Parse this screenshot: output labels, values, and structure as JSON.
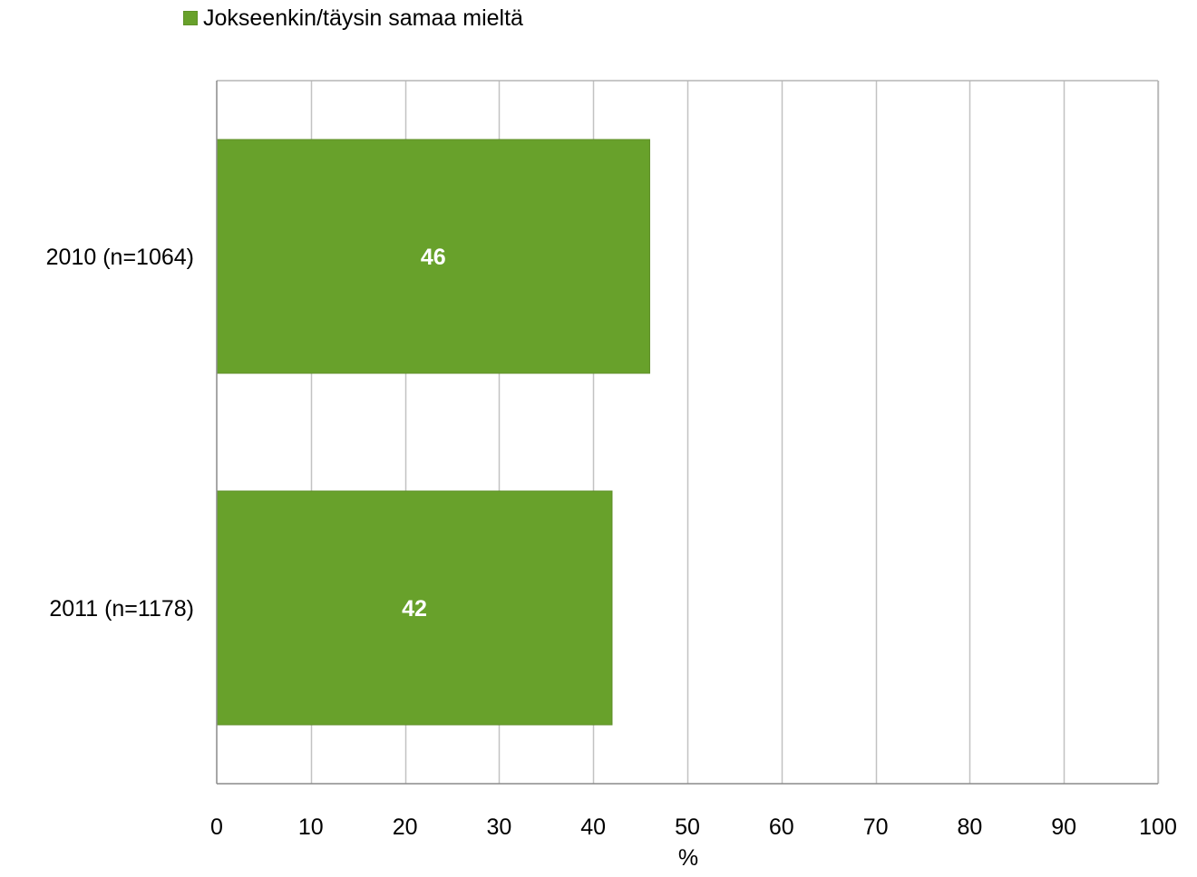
{
  "chart_data": {
    "type": "bar",
    "orientation": "horizontal",
    "categories": [
      "2010 (n=1064)",
      "2011 (n=1178)"
    ],
    "series": [
      {
        "name": "Jokseenkin/täysin samaa mieltä",
        "values": [
          46,
          42
        ],
        "data_labels": [
          "46",
          "42"
        ],
        "color": "#68a12b"
      }
    ],
    "xlabel": "%",
    "ylabel": "",
    "xlim": [
      0,
      100
    ],
    "xticks": [
      "0",
      "10",
      "20",
      "30",
      "40",
      "50",
      "60",
      "70",
      "80",
      "90",
      "100"
    ],
    "grid": true,
    "legend_position": "top-left"
  }
}
